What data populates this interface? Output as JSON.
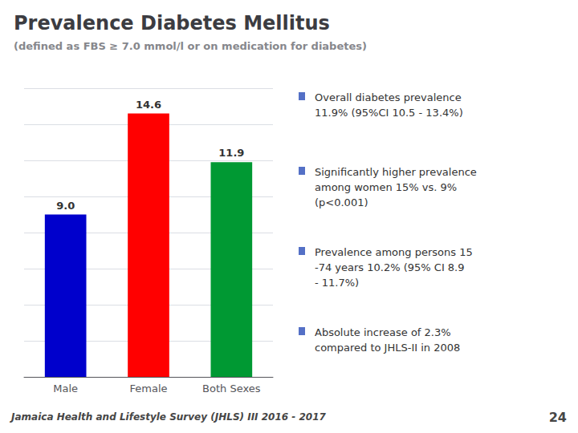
{
  "chart_data": {
    "type": "bar",
    "title": "Prevalence Diabetes Mellitus",
    "subtitle": "(defined as FBS ≥ 7.0 mmol/l or on medication for diabetes)",
    "categories": [
      "Male",
      "Female",
      "Both Sexes"
    ],
    "values": [
      9.0,
      14.6,
      11.9
    ],
    "value_labels": [
      "9.0",
      "14.6",
      "11.9"
    ],
    "colors": [
      "#0000cc",
      "#ff0000",
      "#009933"
    ],
    "ylim": [
      0,
      16
    ],
    "yticks": [
      0,
      2,
      4,
      6,
      8,
      10,
      12,
      14,
      16
    ],
    "grid": true,
    "data_labels": true,
    "tick_labels": "x",
    "annotations": [
      "Overall diabetes prevalence\n11.9% (95%CI 10.5 - 13.4%)",
      "Significantly higher prevalence\namong women 15% vs. 9%\n(p<0.001)",
      "Prevalence among persons 15\n-74 years 10.2% (95% CI 8.9\n- 11.7%)",
      "Absolute increase of 2.3%\ncompared to JHLS-II in 2008",
      "Jamaica Health and Lifestyle Survey (JHLS) III 2016 - 2017",
      "24"
    ]
  }
}
